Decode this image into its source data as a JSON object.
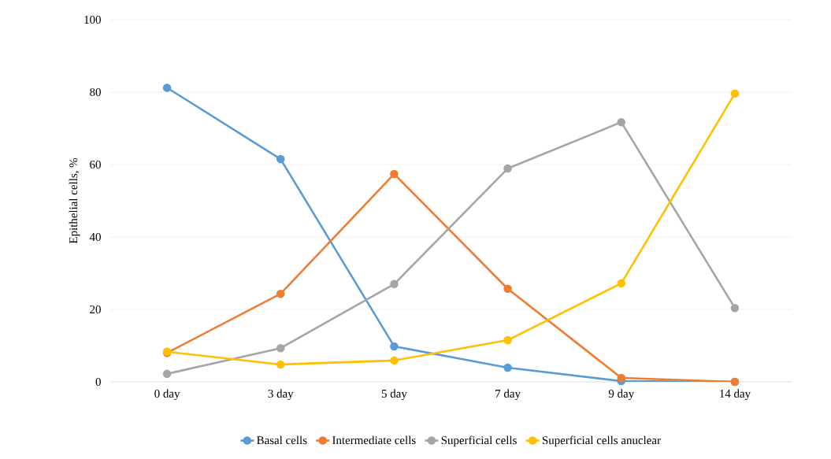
{
  "chart_data": {
    "type": "line",
    "ylabel": "Epithelial cells, %",
    "categories": [
      "0 day",
      "3 day",
      "5 day",
      "7 day",
      "9 day",
      "14 day"
    ],
    "series": [
      {
        "name": "Basal cells",
        "color": "#5b9bd5",
        "values": [
          81.2,
          61.5,
          9.8,
          3.9,
          0.2,
          0
        ]
      },
      {
        "name": "Intermediate cells",
        "color": "#ed7d31",
        "values": [
          8.0,
          24.3,
          57.4,
          25.7,
          1.1,
          0
        ]
      },
      {
        "name": "Superficial cells",
        "color": "#a5a5a5",
        "values": [
          2.2,
          9.3,
          27.0,
          58.9,
          71.7,
          20.4
        ]
      },
      {
        "name": "Superficial cells anuclear",
        "color": "#ffc000",
        "values": [
          8.3,
          4.8,
          5.9,
          11.5,
          27.2,
          79.6
        ]
      }
    ],
    "ylim": [
      0,
      100
    ],
    "yticks": [
      0,
      20,
      40,
      60,
      80,
      100
    ],
    "grid": "y",
    "legend": "bottom",
    "marker": "circle",
    "line_style": "solid"
  }
}
